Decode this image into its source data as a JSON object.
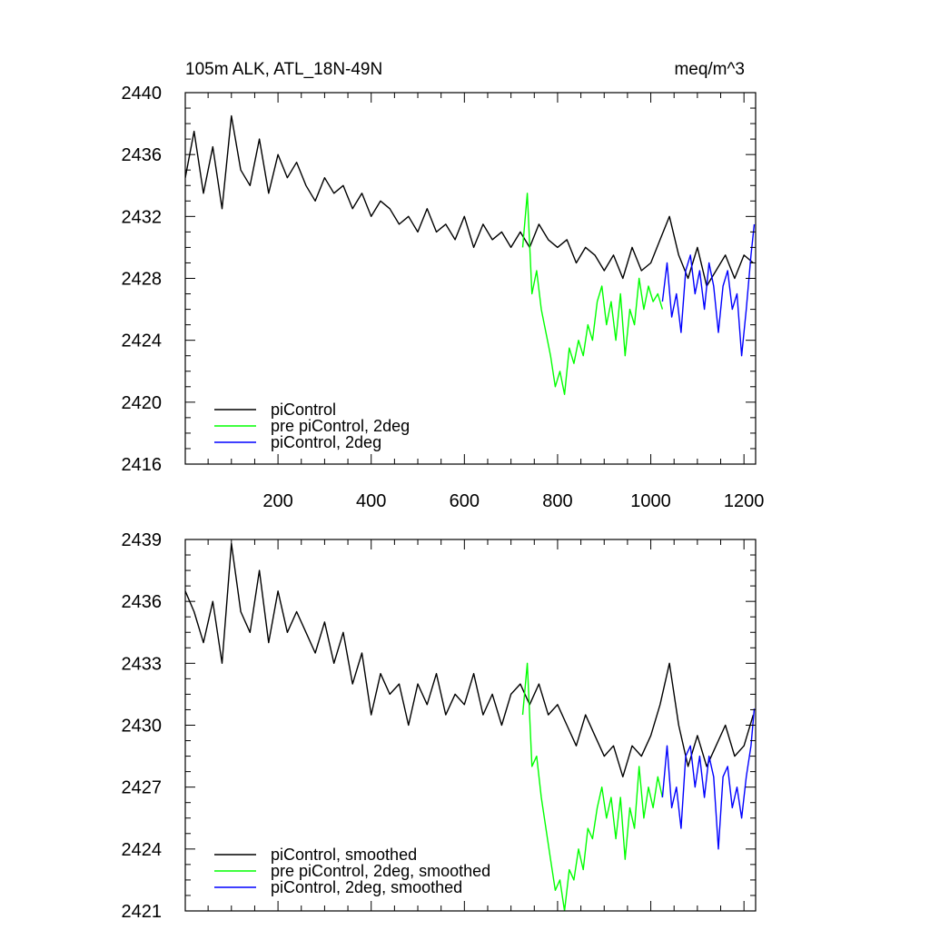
{
  "figure": {
    "title_left": "105m ALK, ATL_18N-49N",
    "title_right": "meq/m^3"
  },
  "chart_data": [
    {
      "type": "line",
      "panel": "top",
      "xlim": [
        1,
        1225
      ],
      "ylim": [
        2416,
        2440
      ],
      "x_ticks": [
        200,
        400,
        600,
        800,
        1000,
        1200
      ],
      "y_ticks": [
        2416,
        2420,
        2424,
        2428,
        2432,
        2436,
        2440
      ],
      "x_ticks_labeled": true,
      "grid": false,
      "legend_position": "bottom-left",
      "series": [
        {
          "name": "piControl",
          "color": "#000000",
          "x": [
            1,
            20,
            40,
            60,
            80,
            100,
            120,
            140,
            160,
            180,
            200,
            220,
            240,
            260,
            280,
            300,
            320,
            340,
            360,
            380,
            400,
            420,
            440,
            460,
            480,
            500,
            520,
            540,
            560,
            580,
            600,
            620,
            640,
            660,
            680,
            700,
            720,
            740,
            760,
            780,
            800,
            820,
            840,
            860,
            880,
            900,
            920,
            940,
            960,
            980,
            1000,
            1020,
            1040,
            1060,
            1080,
            1100,
            1120,
            1140,
            1160,
            1180,
            1200,
            1220
          ],
          "y": [
            2434.5,
            2437.5,
            2433.5,
            2436.5,
            2432.5,
            2438.5,
            2435.0,
            2434.0,
            2437.0,
            2433.5,
            2436.0,
            2434.5,
            2435.5,
            2434.0,
            2433.0,
            2434.5,
            2433.5,
            2434.0,
            2432.5,
            2433.5,
            2432.0,
            2433.0,
            2432.5,
            2431.5,
            2432.0,
            2431.0,
            2432.5,
            2431.0,
            2431.5,
            2430.5,
            2432.0,
            2430.0,
            2431.5,
            2430.5,
            2431.0,
            2430.0,
            2431.0,
            2430.0,
            2431.5,
            2430.5,
            2430.0,
            2430.5,
            2429.0,
            2430.0,
            2429.5,
            2428.5,
            2429.5,
            2428.0,
            2430.0,
            2428.5,
            2429.0,
            2430.5,
            2432.0,
            2429.5,
            2428.0,
            2430.0,
            2427.5,
            2428.5,
            2429.5,
            2428.0,
            2429.5,
            2429.0
          ]
        },
        {
          "name": "pre piControl, 2deg",
          "color": "#00ff00",
          "x": [
            725,
            735,
            745,
            755,
            765,
            775,
            785,
            795,
            805,
            815,
            825,
            835,
            845,
            855,
            865,
            875,
            885,
            895,
            905,
            915,
            925,
            935,
            945,
            955,
            965,
            975,
            985,
            995,
            1005,
            1015,
            1025
          ],
          "y": [
            2430.0,
            2433.5,
            2427.0,
            2428.5,
            2426.0,
            2424.5,
            2423.0,
            2421.0,
            2422.0,
            2420.5,
            2423.5,
            2422.5,
            2424.0,
            2423.0,
            2425.0,
            2424.0,
            2426.5,
            2427.5,
            2425.0,
            2426.5,
            2424.0,
            2427.0,
            2423.0,
            2426.0,
            2425.0,
            2428.0,
            2426.0,
            2427.5,
            2426.5,
            2427.0,
            2426.0
          ]
        },
        {
          "name": "piControl, 2deg",
          "color": "#0000ff",
          "x": [
            1025,
            1035,
            1045,
            1055,
            1065,
            1075,
            1085,
            1095,
            1105,
            1115,
            1125,
            1135,
            1145,
            1155,
            1165,
            1175,
            1185,
            1195,
            1205,
            1215,
            1222
          ],
          "y": [
            2426.5,
            2429.0,
            2425.5,
            2427.0,
            2424.5,
            2428.5,
            2429.5,
            2427.0,
            2428.5,
            2426.0,
            2429.0,
            2427.5,
            2424.5,
            2427.5,
            2428.5,
            2426.0,
            2427.0,
            2423.0,
            2426.0,
            2429.5,
            2431.5
          ]
        }
      ]
    },
    {
      "type": "line",
      "panel": "bottom",
      "xlim": [
        1,
        1225
      ],
      "ylim": [
        2421,
        2439
      ],
      "x_ticks": [
        200,
        400,
        600,
        800,
        1000,
        1200
      ],
      "y_ticks": [
        2421,
        2424,
        2427,
        2430,
        2433,
        2436,
        2439
      ],
      "x_ticks_labeled": false,
      "grid": false,
      "legend_position": "bottom-left",
      "series": [
        {
          "name": "piControl, smoothed",
          "color": "#000000",
          "x": [
            1,
            20,
            40,
            60,
            80,
            100,
            120,
            140,
            160,
            180,
            200,
            220,
            240,
            260,
            280,
            300,
            320,
            340,
            360,
            380,
            400,
            420,
            440,
            460,
            480,
            500,
            520,
            540,
            560,
            580,
            600,
            620,
            640,
            660,
            680,
            700,
            720,
            740,
            760,
            780,
            800,
            820,
            840,
            860,
            880,
            900,
            920,
            940,
            960,
            980,
            1000,
            1020,
            1040,
            1060,
            1080,
            1100,
            1120,
            1140,
            1160,
            1180,
            1200,
            1220
          ],
          "y": [
            2436.5,
            2435.5,
            2434.0,
            2436.0,
            2433.0,
            2438.8,
            2435.5,
            2434.5,
            2437.5,
            2434.0,
            2436.5,
            2434.5,
            2435.5,
            2434.5,
            2433.5,
            2435.0,
            2433.0,
            2434.5,
            2432.0,
            2433.5,
            2430.5,
            2432.5,
            2431.5,
            2432.0,
            2430.0,
            2432.0,
            2431.0,
            2432.5,
            2430.5,
            2431.5,
            2431.0,
            2432.5,
            2430.5,
            2431.5,
            2430.0,
            2431.5,
            2432.0,
            2431.0,
            2432.0,
            2430.5,
            2431.0,
            2430.0,
            2429.0,
            2430.5,
            2429.5,
            2428.5,
            2429.0,
            2427.5,
            2429.0,
            2428.5,
            2429.5,
            2431.0,
            2433.0,
            2430.0,
            2428.0,
            2429.5,
            2428.0,
            2429.0,
            2430.0,
            2428.5,
            2429.0,
            2430.5
          ]
        },
        {
          "name": "pre piControl, 2deg, smoothed",
          "color": "#00ff00",
          "x": [
            725,
            735,
            745,
            755,
            765,
            775,
            785,
            795,
            805,
            815,
            825,
            835,
            845,
            855,
            865,
            875,
            885,
            895,
            905,
            915,
            925,
            935,
            945,
            955,
            965,
            975,
            985,
            995,
            1005,
            1015,
            1025
          ],
          "y": [
            2430.5,
            2433.0,
            2428.0,
            2428.5,
            2426.5,
            2425.0,
            2423.5,
            2422.0,
            2422.5,
            2421.0,
            2423.0,
            2422.5,
            2424.0,
            2423.0,
            2425.0,
            2424.5,
            2426.0,
            2427.0,
            2425.5,
            2426.5,
            2424.5,
            2426.5,
            2423.5,
            2426.0,
            2425.0,
            2428.0,
            2425.5,
            2427.0,
            2426.0,
            2427.5,
            2426.5
          ]
        },
        {
          "name": "piControl, 2deg, smoothed",
          "color": "#0000ff",
          "x": [
            1025,
            1035,
            1045,
            1055,
            1065,
            1075,
            1085,
            1095,
            1105,
            1115,
            1125,
            1135,
            1145,
            1155,
            1165,
            1175,
            1185,
            1195,
            1205,
            1215,
            1222
          ],
          "y": [
            2426.5,
            2429.0,
            2426.0,
            2427.0,
            2425.0,
            2428.5,
            2429.0,
            2427.0,
            2428.5,
            2426.5,
            2428.5,
            2427.5,
            2424.0,
            2427.5,
            2428.0,
            2426.0,
            2427.0,
            2425.5,
            2427.5,
            2429.0,
            2430.8
          ]
        }
      ]
    }
  ]
}
